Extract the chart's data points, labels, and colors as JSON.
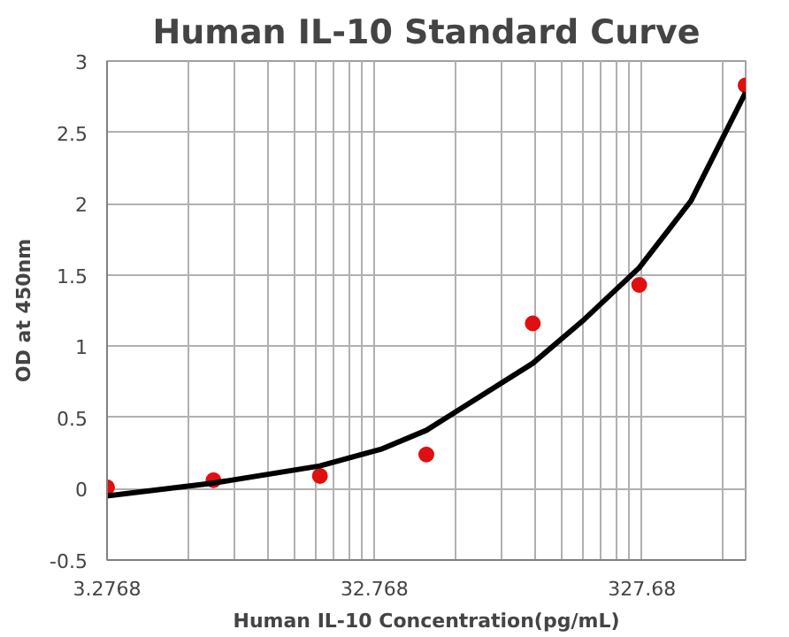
{
  "chart_data": {
    "type": "scatter",
    "title": "Human IL-10 Standard Curve",
    "xlabel": "Human IL-10 Concentration(pg/mL)",
    "ylabel": "OD at 450nm",
    "log": "x",
    "grid": true,
    "xlim": [
      3.2768,
      800
    ],
    "xticks": [
      3.2768,
      32.768,
      327.68
    ],
    "ylim": [
      -0.5,
      3
    ],
    "yticks": [
      -0.5,
      0,
      0.5,
      1,
      1.5,
      2,
      2.5,
      3
    ],
    "series": [
      {
        "marker": "circle",
        "color": "#e01010",
        "x": [
          3.2768,
          8.192,
          20.48,
          51.2,
          128,
          320,
          800
        ],
        "values": [
          0.01,
          0.06,
          0.09,
          0.24,
          1.16,
          1.43,
          2.83
        ]
      },
      {
        "type": "line",
        "color": "#000000",
        "line_style": "solid",
        "x": [
          3.2768,
          8.192,
          20.48,
          35,
          51.2,
          128,
          200,
          320,
          500,
          800
        ],
        "values": [
          -0.05,
          0.04,
          0.16,
          0.28,
          0.41,
          0.88,
          1.19,
          1.55,
          2.02,
          2.78
        ]
      }
    ]
  }
}
